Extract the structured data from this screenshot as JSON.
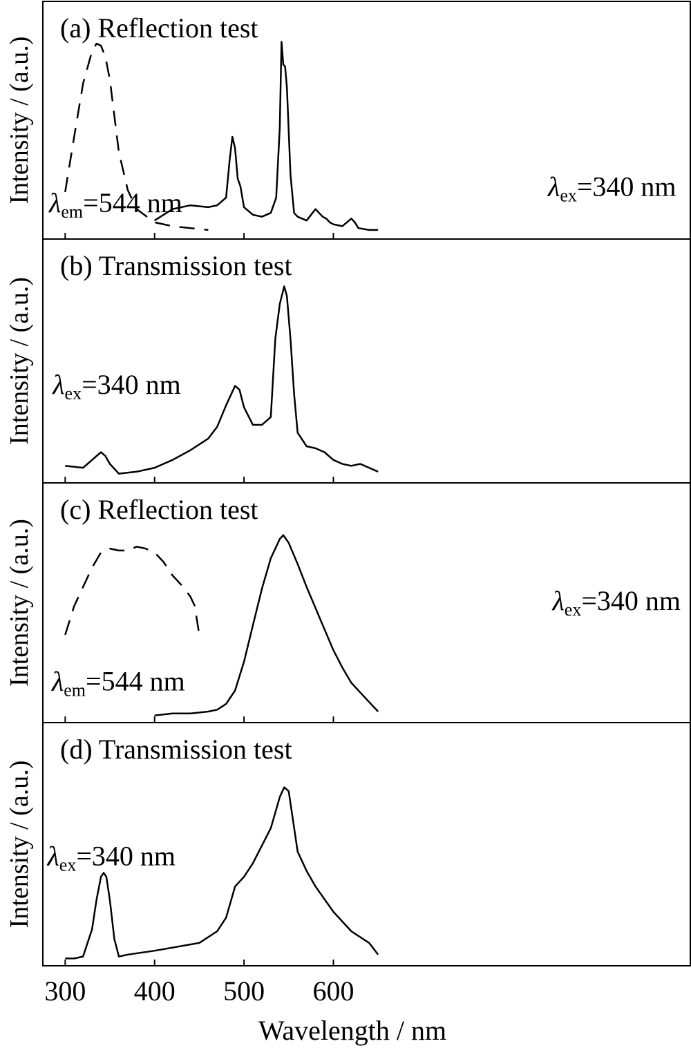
{
  "figure": {
    "xlabel": "Wavelength / nm",
    "ylabel": "Intensity / (a.u.)",
    "x_ticks": [
      300,
      400,
      500,
      600
    ],
    "xlim": [
      275,
      1000
    ]
  },
  "chart_data": [
    {
      "type": "line",
      "title": "(a) Reflection test",
      "xlabel": "Wavelength / nm",
      "ylabel": "Intensity / (a.u.)",
      "xlim": [
        275,
        1000
      ],
      "ylim": [
        0,
        1
      ],
      "grid": false,
      "annotations": [
        {
          "text": "λ",
          "sub": "em",
          "rest": "=544 nm",
          "x": 282,
          "y": 0.105
        },
        {
          "text": "λ",
          "sub": "ex",
          "rest": "=340 nm",
          "x": 840,
          "y": 0.19
        }
      ],
      "series": [
        {
          "style": "dashed",
          "x": [
            300,
            310,
            320,
            330,
            335,
            340,
            345,
            350,
            360,
            370,
            380,
            400,
            420,
            440,
            460
          ],
          "y": [
            0.21,
            0.5,
            0.78,
            0.95,
            0.99,
            0.98,
            0.92,
            0.8,
            0.42,
            0.22,
            0.12,
            0.05,
            0.03,
            0.02,
            0.01
          ]
        },
        {
          "style": "solid",
          "x": [
            400,
            420,
            440,
            460,
            470,
            480,
            484,
            487,
            490,
            493,
            496,
            500,
            510,
            520,
            530,
            536,
            540,
            542,
            544,
            546,
            548,
            552,
            556,
            560,
            570,
            580,
            584,
            588,
            592,
            596,
            600,
            610,
            620,
            624,
            628,
            640,
            650
          ],
          "y": [
            0.06,
            0.12,
            0.14,
            0.13,
            0.14,
            0.18,
            0.38,
            0.5,
            0.44,
            0.28,
            0.24,
            0.13,
            0.09,
            0.08,
            0.1,
            0.18,
            0.55,
            1.0,
            0.88,
            0.87,
            0.76,
            0.3,
            0.1,
            0.08,
            0.06,
            0.12,
            0.1,
            0.08,
            0.07,
            0.05,
            0.04,
            0.03,
            0.07,
            0.05,
            0.02,
            0.01,
            0.01
          ]
        }
      ]
    },
    {
      "type": "line",
      "title": "(b) Transmission test",
      "xlabel": "Wavelength / nm",
      "ylabel": "Intensity / (a.u.)",
      "xlim": [
        275,
        1000
      ],
      "ylim": [
        0,
        1
      ],
      "grid": false,
      "annotations": [
        {
          "text": "λ",
          "sub": "ex",
          "rest": "=340 nm",
          "x": 286,
          "y": 0.42
        }
      ],
      "series": [
        {
          "style": "solid",
          "x": [
            300,
            320,
            330,
            340,
            345,
            350,
            360,
            380,
            400,
            420,
            440,
            460,
            470,
            480,
            490,
            495,
            500,
            510,
            520,
            530,
            535,
            540,
            545,
            548,
            552,
            556,
            560,
            570,
            580,
            590,
            600,
            610,
            620,
            630,
            640,
            650
          ],
          "y": [
            0.05,
            0.04,
            0.08,
            0.12,
            0.1,
            0.06,
            0.01,
            0.02,
            0.04,
            0.08,
            0.13,
            0.19,
            0.25,
            0.36,
            0.46,
            0.44,
            0.35,
            0.26,
            0.26,
            0.3,
            0.7,
            0.88,
            0.97,
            0.92,
            0.7,
            0.42,
            0.22,
            0.15,
            0.14,
            0.12,
            0.08,
            0.06,
            0.05,
            0.06,
            0.04,
            0.02
          ]
        }
      ]
    },
    {
      "type": "line",
      "title": "(c) Reflection test",
      "xlabel": "Wavelength / nm",
      "ylabel": "Intensity / (a.u.)",
      "xlim": [
        275,
        1000
      ],
      "ylim": [
        0,
        1
      ],
      "grid": false,
      "annotations": [
        {
          "text": "λ",
          "sub": "em",
          "rest": "=544 nm",
          "x": 285,
          "y": 0.13
        },
        {
          "text": "λ",
          "sub": "ex",
          "rest": "=340 nm",
          "x": 845,
          "y": 0.55
        }
      ],
      "series": [
        {
          "style": "dashed",
          "x": [
            300,
            310,
            320,
            330,
            340,
            350,
            360,
            370,
            380,
            390,
            400,
            410,
            420,
            430,
            440,
            445,
            450
          ],
          "y": [
            0.42,
            0.57,
            0.67,
            0.77,
            0.85,
            0.87,
            0.86,
            0.86,
            0.88,
            0.87,
            0.85,
            0.8,
            0.73,
            0.68,
            0.62,
            0.57,
            0.42
          ]
        },
        {
          "style": "solid",
          "x": [
            400,
            420,
            440,
            460,
            470,
            480,
            490,
            500,
            510,
            520,
            530,
            540,
            544,
            550,
            560,
            570,
            580,
            590,
            600,
            610,
            620,
            630,
            640,
            650
          ],
          "y": [
            0.0,
            0.01,
            0.01,
            0.02,
            0.03,
            0.06,
            0.13,
            0.28,
            0.47,
            0.66,
            0.82,
            0.92,
            0.94,
            0.9,
            0.79,
            0.67,
            0.56,
            0.45,
            0.34,
            0.25,
            0.17,
            0.12,
            0.07,
            0.02
          ]
        }
      ]
    },
    {
      "type": "line",
      "title": "(d) Transmission test",
      "xlabel": "Wavelength / nm",
      "ylabel": "Intensity / (a.u.)",
      "xlim": [
        275,
        1000
      ],
      "ylim": [
        0,
        1
      ],
      "grid": false,
      "annotations": [
        {
          "text": "λ",
          "sub": "ex",
          "rest": "=340 nm",
          "x": 280,
          "y": 0.48
        }
      ],
      "series": [
        {
          "style": "solid",
          "x": [
            300,
            310,
            320,
            330,
            335,
            340,
            343,
            346,
            350,
            355,
            360,
            370,
            400,
            450,
            470,
            480,
            490,
            500,
            510,
            520,
            530,
            540,
            545,
            550,
            560,
            570,
            580,
            600,
            620,
            640,
            650
          ],
          "y": [
            0.0,
            0.0,
            0.01,
            0.15,
            0.3,
            0.42,
            0.44,
            0.42,
            0.3,
            0.1,
            0.01,
            0.02,
            0.04,
            0.08,
            0.14,
            0.21,
            0.37,
            0.42,
            0.49,
            0.58,
            0.67,
            0.83,
            0.88,
            0.86,
            0.55,
            0.45,
            0.37,
            0.24,
            0.14,
            0.08,
            0.02
          ]
        }
      ]
    }
  ]
}
